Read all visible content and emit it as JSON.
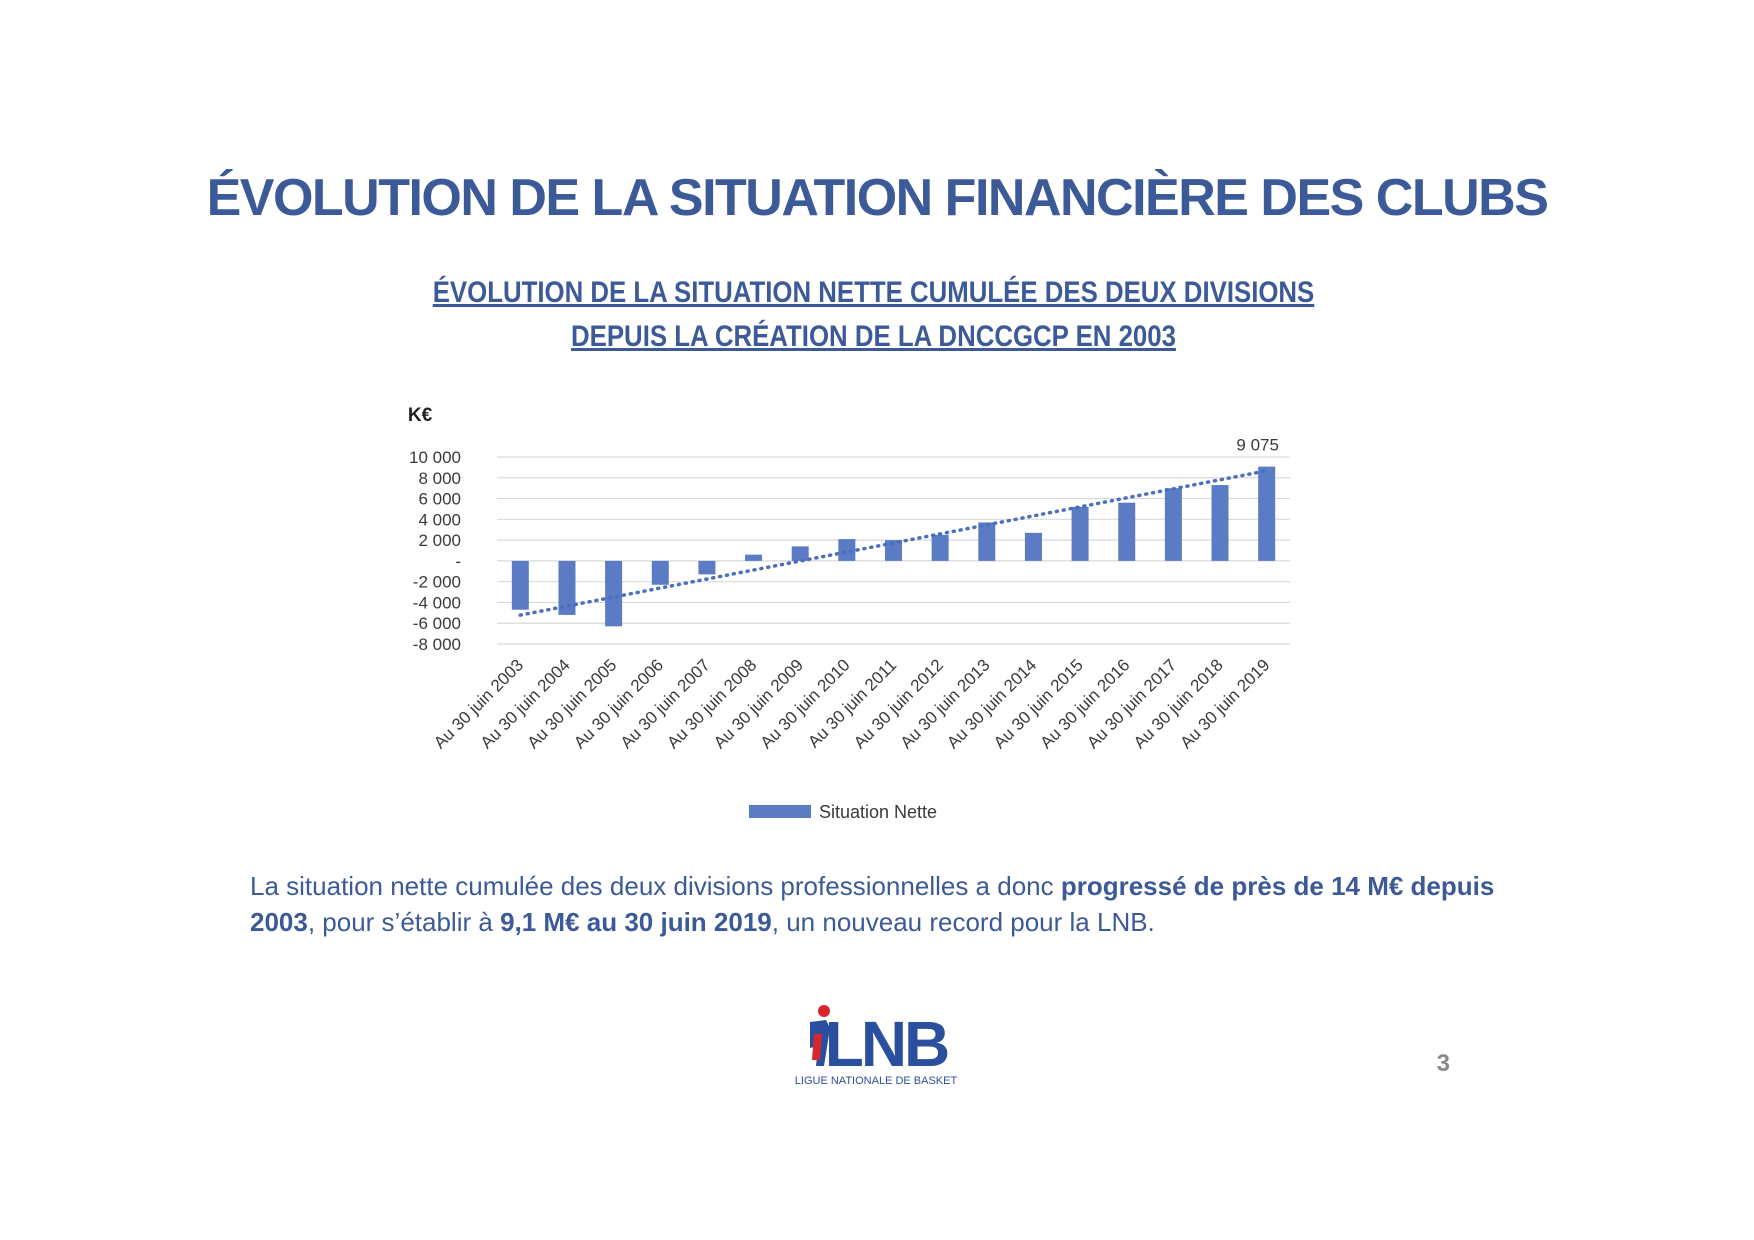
{
  "page": {
    "title": "ÉVOLUTION DE LA SITUATION FINANCIÈRE DES CLUBS",
    "subtitle_line1": "ÉVOLUTION DE LA SITUATION NETTE CUMULÉE DES DEUX DIVISIONS",
    "subtitle_line2": "DEPUIS LA CRÉATION DE LA DNCCGCP EN 2003",
    "paragraph": {
      "part1": "La situation nette cumulée des deux divisions professionnelles a donc ",
      "bold1": "progressé de près de 14 M€ depuis 2003",
      "part2": ", pour s’établir à ",
      "bold2": "9,1 M€ au 30 juin 2019",
      "part3": ", un nouveau record pour la LNB."
    },
    "page_number": "3",
    "logo": {
      "text": "LNB",
      "tagline": "LIGUE NATIONALE DE BASKET"
    }
  },
  "colors": {
    "title": "#3d5a98",
    "bar": "#5b7bc4",
    "trendline": "#4a6fbf",
    "grid": "#d9d9d9",
    "axis_text": "#3a3a3a",
    "page_number": "#8a8a8a",
    "logo_blue": "#2a4f9f",
    "logo_red": "#d9262c"
  },
  "chart_data": {
    "type": "bar",
    "ylabel": "K€",
    "ylim": [
      -8000,
      10000
    ],
    "yticks": [
      10000,
      8000,
      6000,
      4000,
      2000,
      0,
      -2000,
      -4000,
      -6000,
      -8000
    ],
    "ytick_labels": [
      "10 000",
      "8 000",
      "6 000",
      "4 000",
      "2 000",
      "-",
      "-2 000",
      "-4 000",
      "-6 000",
      "-8 000"
    ],
    "grid": true,
    "categories": [
      "Au 30 juin 2003",
      "Au 30 juin 2004",
      "Au 30 juin 2005",
      "Au 30 juin 2006",
      "Au 30 juin 2007",
      "Au 30 juin 2008",
      "Au 30 juin 2009",
      "Au 30 juin 2010",
      "Au 30 juin 2011",
      "Au 30 juin 2012",
      "Au 30 juin 2013",
      "Au 30 juin 2014",
      "Au 30 juin 2015",
      "Au 30 juin 2016",
      "Au 30 juin 2017",
      "Au 30 juin 2018",
      "Au 30 juin 2019"
    ],
    "series": [
      {
        "name": "Situation Nette",
        "values": [
          -4700,
          -5200,
          -6300,
          -2300,
          -1300,
          600,
          1400,
          2100,
          2000,
          2500,
          3700,
          2700,
          5200,
          5600,
          7000,
          7300,
          9075
        ]
      }
    ],
    "trendline": {
      "type": "linear",
      "style": "dotted"
    },
    "data_labels": [
      {
        "category": "Au 30 juin 2019",
        "label": "9 075"
      }
    ],
    "legend": {
      "position": "bottom",
      "entries": [
        "Situation Nette"
      ]
    }
  }
}
